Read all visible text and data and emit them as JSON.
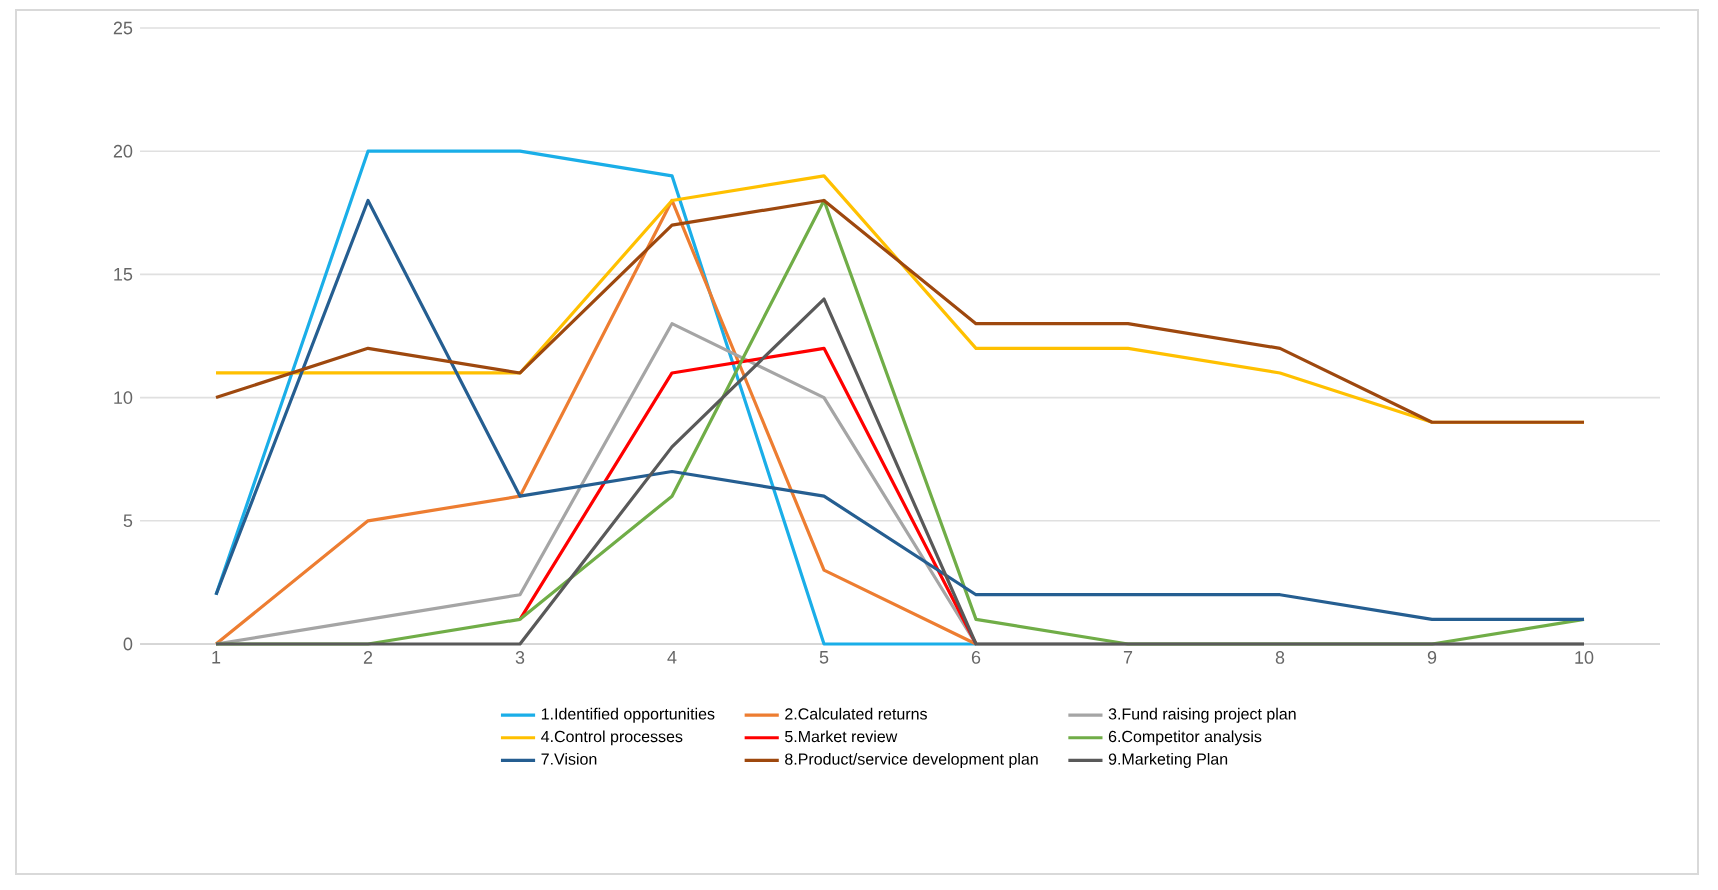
{
  "chart_data": {
    "type": "line",
    "categories": [
      "1",
      "2",
      "3",
      "4",
      "5",
      "6",
      "7",
      "8",
      "9",
      "10"
    ],
    "ylim": [
      0,
      25
    ],
    "yticks": [
      0,
      5,
      10,
      15,
      20,
      25
    ],
    "grid": "y",
    "legend": "bottom",
    "marker": "none",
    "line_style": "solid",
    "series": [
      {
        "name": "1.Identified opportunities",
        "color": "#1aaee8",
        "values": [
          2,
          20,
          20,
          19,
          0,
          0,
          null,
          null,
          null,
          null
        ]
      },
      {
        "name": "2.Calculated returns",
        "color": "#ed7d31",
        "values": [
          0,
          5,
          6,
          18,
          3,
          0,
          null,
          null,
          null,
          null
        ]
      },
      {
        "name": "3.Fund raising project plan",
        "color": "#a5a5a5",
        "values": [
          0,
          1,
          2,
          13,
          10,
          0,
          0,
          0,
          0,
          0
        ]
      },
      {
        "name": "4.Control processes",
        "color": "#ffc000",
        "values": [
          11,
          11,
          11,
          18,
          19,
          12,
          12,
          11,
          9,
          9
        ]
      },
      {
        "name": "5.Market review",
        "color": "#ff0000",
        "values": [
          null,
          null,
          1,
          11,
          12,
          0,
          null,
          null,
          null,
          null
        ]
      },
      {
        "name": "6.Competitor analysis",
        "color": "#70ad47",
        "values": [
          0,
          0,
          1,
          6,
          18,
          1,
          0,
          0,
          0,
          1
        ]
      },
      {
        "name": "7.Vision",
        "color": "#255e91",
        "values": [
          2,
          18,
          6,
          7,
          6,
          2,
          2,
          2,
          1,
          1
        ]
      },
      {
        "name": "8.Product/service development plan",
        "color": "#9e480e",
        "values": [
          10,
          12,
          11,
          17,
          18,
          13,
          13,
          12,
          9,
          9
        ]
      },
      {
        "name": "9.Marketing Plan",
        "color": "#595959",
        "values": [
          0,
          0,
          0,
          8,
          14,
          0,
          0,
          0,
          0,
          0
        ]
      }
    ]
  }
}
